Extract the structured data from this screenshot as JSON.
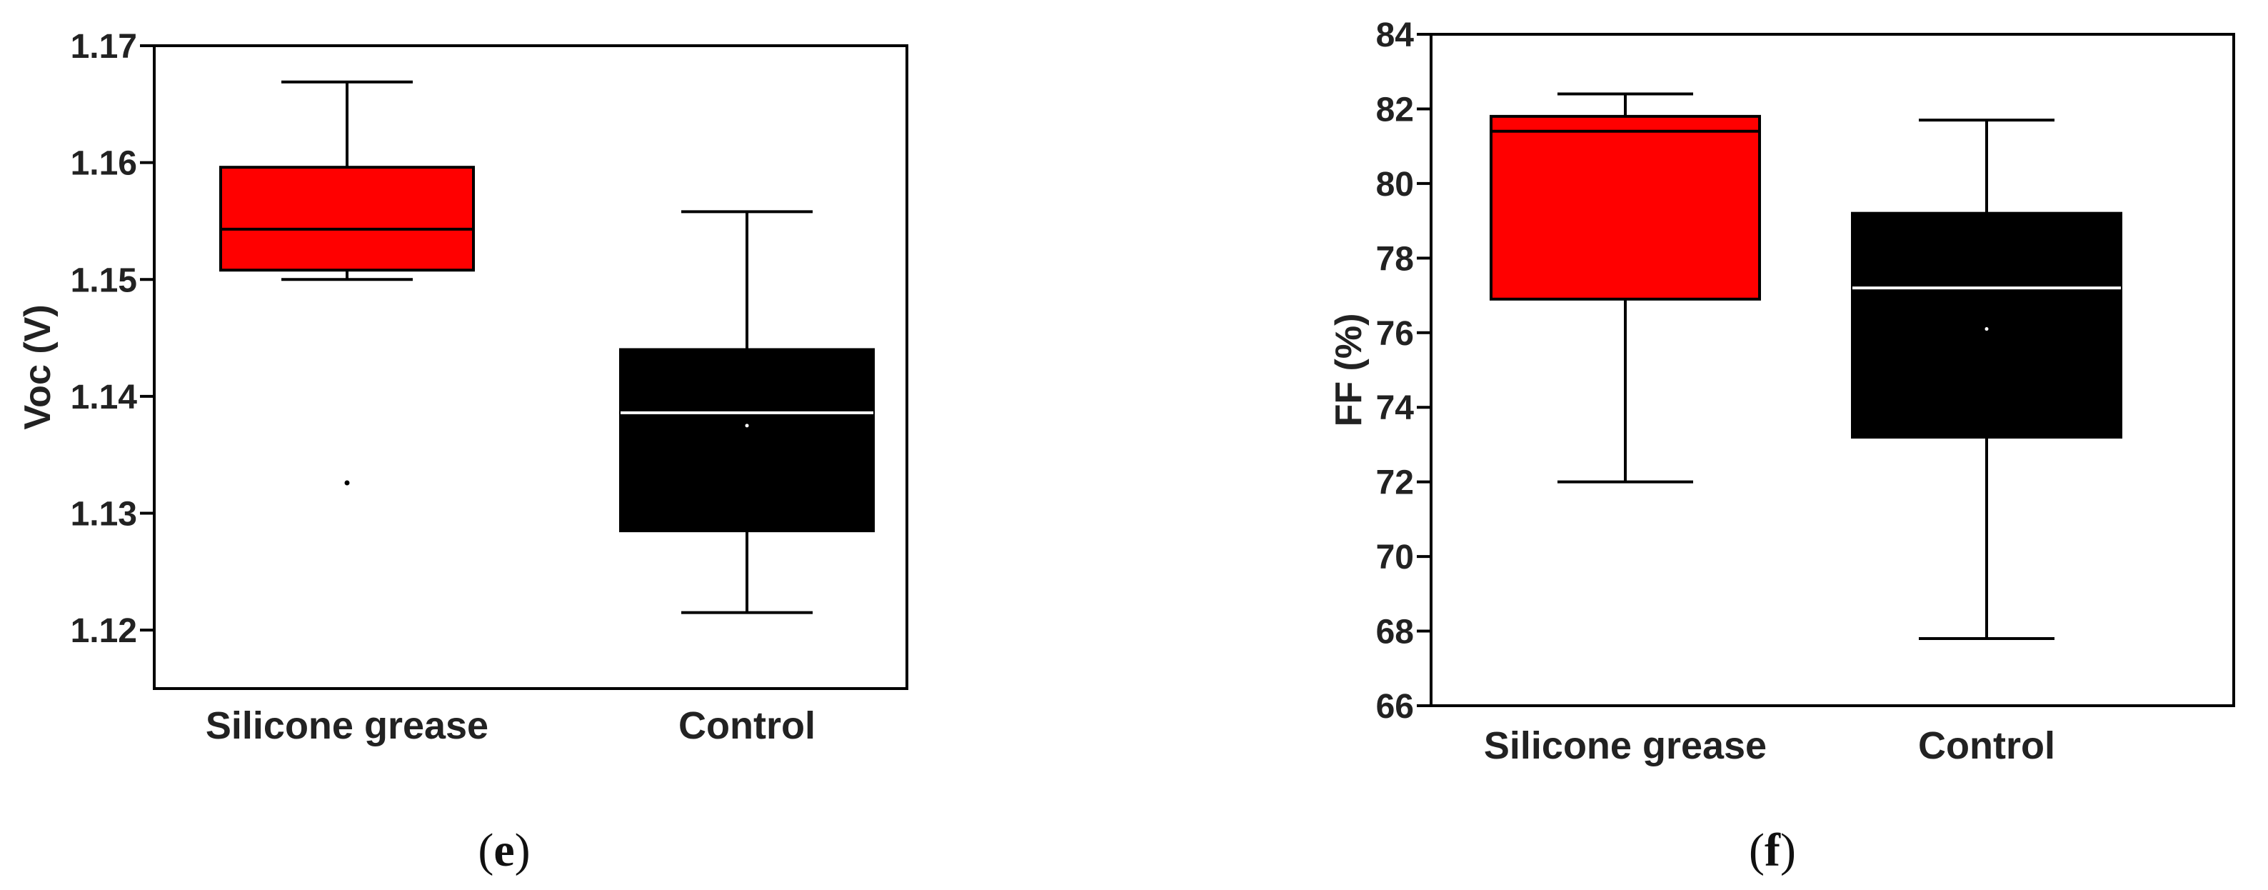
{
  "chart_data": [
    {
      "type": "box",
      "panel_label": "e",
      "ylabel": "Voc (V)",
      "ylim": [
        1.115,
        1.17
      ],
      "yticks": [
        1.12,
        1.13,
        1.14,
        1.15,
        1.16,
        1.17
      ],
      "ytick_labels": [
        "1.12",
        "1.13",
        "1.14",
        "1.15",
        "1.16",
        "1.17"
      ],
      "grid": false,
      "categories": [
        "Silicone grease",
        "Control"
      ],
      "boxes": [
        {
          "category": "Silicone grease",
          "color": "#ff0000",
          "median_color": "#000000",
          "whisker_low": 1.15,
          "q1": 1.1508,
          "median": 1.1543,
          "q3": 1.1596,
          "whisker_high": 1.1669,
          "mean": null,
          "outliers": [
            1.1326
          ]
        },
        {
          "category": "Control",
          "color": "#000000",
          "median_color": "#ffffff",
          "whisker_low": 1.1215,
          "q1": 1.1285,
          "median": 1.1386,
          "q3": 1.144,
          "whisker_high": 1.1558,
          "mean": 1.1375,
          "outliers": []
        }
      ]
    },
    {
      "type": "box",
      "panel_label": "f",
      "ylabel": "FF (%)",
      "ylim": [
        66,
        84
      ],
      "yticks": [
        66,
        68,
        70,
        72,
        74,
        76,
        78,
        80,
        82,
        84
      ],
      "ytick_labels": [
        "66",
        "68",
        "70",
        "72",
        "74",
        "76",
        "78",
        "80",
        "82",
        "84"
      ],
      "grid": false,
      "categories": [
        "Silicone grease",
        "Control"
      ],
      "boxes": [
        {
          "category": "Silicone grease",
          "color": "#ff0000",
          "median_color": "#000000",
          "whisker_low": 72.0,
          "q1": 76.9,
          "median": 81.4,
          "q3": 81.8,
          "whisker_high": 82.4,
          "mean": null,
          "outliers": []
        },
        {
          "category": "Control",
          "color": "#000000",
          "median_color": "#ffffff",
          "whisker_low": 67.8,
          "q1": 73.2,
          "median": 77.2,
          "q3": 79.2,
          "whisker_high": 81.7,
          "mean": 76.1,
          "outliers": []
        }
      ]
    }
  ]
}
